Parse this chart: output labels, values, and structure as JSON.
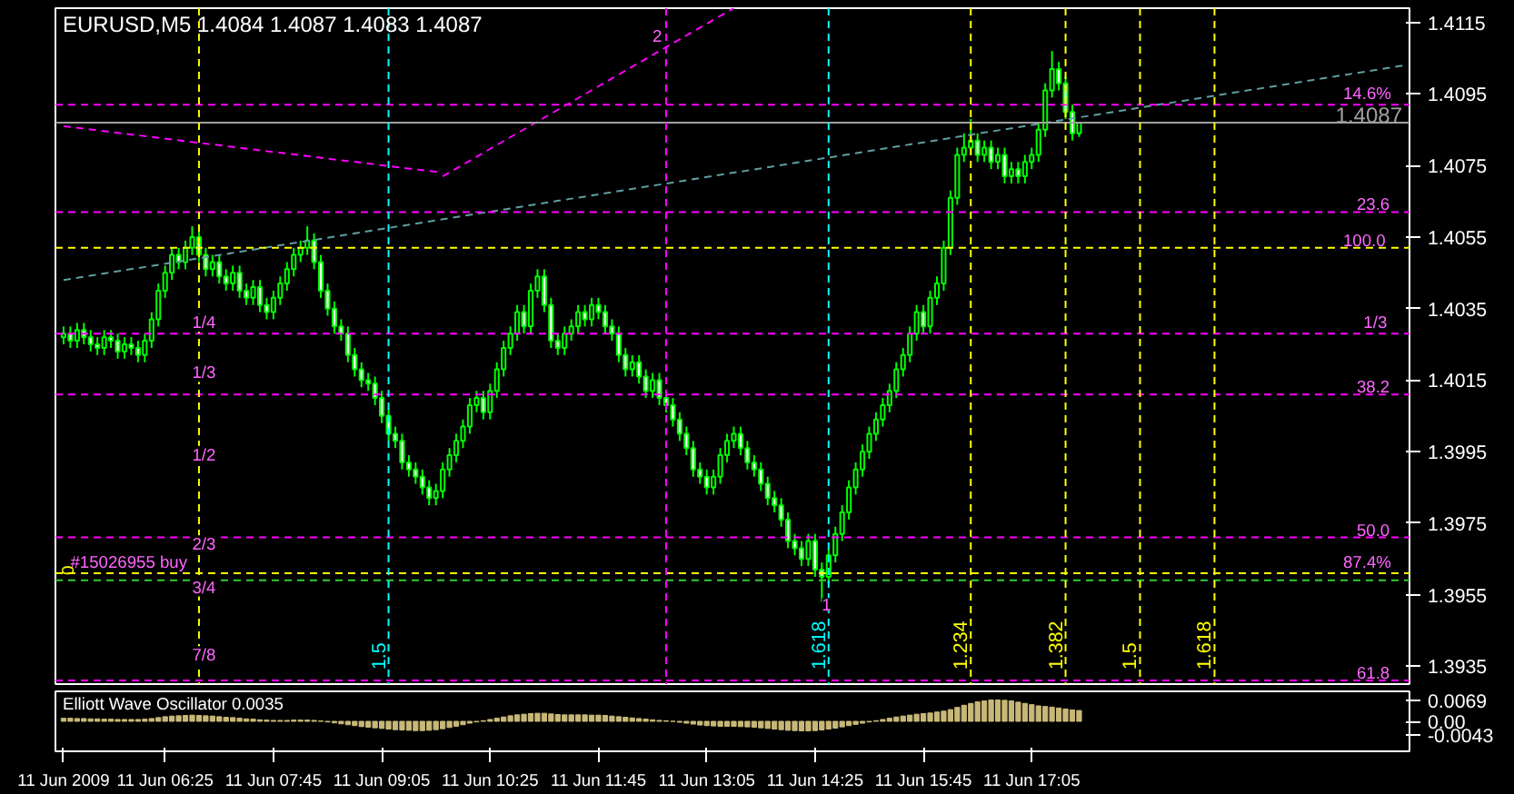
{
  "chart_data": [
    {
      "type": "candlestick",
      "title": "EURUSD,M5  1.4084 1.4087 1.4083 1.4087",
      "color": "#00ff00",
      "x": [
        "2009-06-11T05:10",
        "2009-06-11T05:15",
        "2009-06-11T05:20",
        "2009-06-11T05:25",
        "2009-06-11T05:30",
        "2009-06-11T05:35",
        "2009-06-11T05:40",
        "2009-06-11T05:45",
        "2009-06-11T05:50",
        "2009-06-11T05:55",
        "2009-06-11T06:00",
        "2009-06-11T06:05",
        "2009-06-11T06:10",
        "2009-06-11T06:15",
        "2009-06-11T06:20",
        "2009-06-11T06:25",
        "2009-06-11T06:30",
        "2009-06-11T06:35",
        "2009-06-11T06:40",
        "2009-06-11T06:45",
        "2009-06-11T06:50",
        "2009-06-11T06:55",
        "2009-06-11T07:00",
        "2009-06-11T07:05",
        "2009-06-11T07:10",
        "2009-06-11T07:15",
        "2009-06-11T07:20",
        "2009-06-11T07:25",
        "2009-06-11T07:30",
        "2009-06-11T07:35",
        "2009-06-11T07:40",
        "2009-06-11T07:45",
        "2009-06-11T07:50",
        "2009-06-11T07:55",
        "2009-06-11T08:00",
        "2009-06-11T08:05",
        "2009-06-11T08:10",
        "2009-06-11T08:15",
        "2009-06-11T08:20",
        "2009-06-11T08:25",
        "2009-06-11T08:30",
        "2009-06-11T08:35",
        "2009-06-11T08:40",
        "2009-06-11T08:45",
        "2009-06-11T08:50",
        "2009-06-11T08:55",
        "2009-06-11T09:00",
        "2009-06-11T09:05",
        "2009-06-11T09:10",
        "2009-06-11T09:15",
        "2009-06-11T09:20",
        "2009-06-11T09:25",
        "2009-06-11T09:30",
        "2009-06-11T09:35",
        "2009-06-11T09:40",
        "2009-06-11T09:45",
        "2009-06-11T09:50",
        "2009-06-11T09:55",
        "2009-06-11T10:00",
        "2009-06-11T10:05",
        "2009-06-11T10:10",
        "2009-06-11T10:15",
        "2009-06-11T10:20",
        "2009-06-11T10:25",
        "2009-06-11T10:30",
        "2009-06-11T10:35",
        "2009-06-11T10:40",
        "2009-06-11T10:45",
        "2009-06-11T10:50",
        "2009-06-11T10:55",
        "2009-06-11T11:00",
        "2009-06-11T11:05",
        "2009-06-11T11:10",
        "2009-06-11T11:15",
        "2009-06-11T11:20",
        "2009-06-11T11:25",
        "2009-06-11T11:30",
        "2009-06-11T11:35",
        "2009-06-11T11:40",
        "2009-06-11T11:45",
        "2009-06-11T11:50",
        "2009-06-11T11:55",
        "2009-06-11T12:00",
        "2009-06-11T12:05",
        "2009-06-11T12:10",
        "2009-06-11T12:15",
        "2009-06-11T12:20",
        "2009-06-11T12:25",
        "2009-06-11T12:30",
        "2009-06-11T12:35",
        "2009-06-11T12:40",
        "2009-06-11T12:45",
        "2009-06-11T12:50",
        "2009-06-11T12:55",
        "2009-06-11T13:00",
        "2009-06-11T13:05",
        "2009-06-11T13:10",
        "2009-06-11T13:15",
        "2009-06-11T13:20",
        "2009-06-11T13:25",
        "2009-06-11T13:30",
        "2009-06-11T13:35",
        "2009-06-11T13:40",
        "2009-06-11T13:45",
        "2009-06-11T13:50",
        "2009-06-11T13:55",
        "2009-06-11T14:00",
        "2009-06-11T14:05",
        "2009-06-11T14:10",
        "2009-06-11T14:15",
        "2009-06-11T14:20",
        "2009-06-11T14:25",
        "2009-06-11T14:30",
        "2009-06-11T14:35",
        "2009-06-11T14:40",
        "2009-06-11T14:45",
        "2009-06-11T14:50",
        "2009-06-11T14:55",
        "2009-06-11T15:00",
        "2009-06-11T15:05",
        "2009-06-11T15:10",
        "2009-06-11T15:15",
        "2009-06-11T15:20",
        "2009-06-11T15:25",
        "2009-06-11T15:30",
        "2009-06-11T15:35",
        "2009-06-11T15:40",
        "2009-06-11T15:45",
        "2009-06-11T15:50",
        "2009-06-11T15:55",
        "2009-06-11T16:00",
        "2009-06-11T16:05",
        "2009-06-11T16:10",
        "2009-06-11T16:15",
        "2009-06-11T16:20",
        "2009-06-11T16:25",
        "2009-06-11T16:30",
        "2009-06-11T16:35",
        "2009-06-11T16:40",
        "2009-06-11T16:45",
        "2009-06-11T16:50",
        "2009-06-11T16:55",
        "2009-06-11T17:00",
        "2009-06-11T17:05",
        "2009-06-11T17:10",
        "2009-06-11T17:15",
        "2009-06-11T17:20",
        "2009-06-11T17:25",
        "2009-06-11T17:30",
        "2009-06-11T17:35",
        "2009-06-11T17:40"
      ],
      "ohlc": [
        [
          1.4027,
          1.403,
          1.4025,
          1.4028
        ],
        [
          1.4028,
          1.403,
          1.4024,
          1.4026
        ],
        [
          1.4026,
          1.4031,
          1.4024,
          1.4029
        ],
        [
          1.4029,
          1.4031,
          1.4025,
          1.4027
        ],
        [
          1.4027,
          1.4029,
          1.4023,
          1.4025
        ],
        [
          1.4025,
          1.4027,
          1.4022,
          1.4024
        ],
        [
          1.4024,
          1.4029,
          1.4022,
          1.4027
        ],
        [
          1.4027,
          1.4029,
          1.4024,
          1.4026
        ],
        [
          1.4026,
          1.4028,
          1.4021,
          1.4023
        ],
        [
          1.4023,
          1.4027,
          1.4021,
          1.4025
        ],
        [
          1.4025,
          1.4027,
          1.4022,
          1.4024
        ],
        [
          1.4024,
          1.4026,
          1.402,
          1.4022
        ],
        [
          1.4022,
          1.4028,
          1.402,
          1.4026
        ],
        [
          1.4026,
          1.4034,
          1.4024,
          1.4032
        ],
        [
          1.4032,
          1.4042,
          1.403,
          1.404
        ],
        [
          1.404,
          1.4047,
          1.4038,
          1.4045
        ],
        [
          1.4045,
          1.4052,
          1.4043,
          1.405
        ],
        [
          1.405,
          1.4052,
          1.4046,
          1.4048
        ],
        [
          1.4048,
          1.4054,
          1.4046,
          1.4052
        ],
        [
          1.4052,
          1.4058,
          1.405,
          1.4055
        ],
        [
          1.4055,
          1.4057,
          1.4048,
          1.405
        ],
        [
          1.405,
          1.4052,
          1.4044,
          1.4046
        ],
        [
          1.4046,
          1.405,
          1.4044,
          1.4048
        ],
        [
          1.4048,
          1.405,
          1.4042,
          1.4044
        ],
        [
          1.4044,
          1.4046,
          1.404,
          1.4042
        ],
        [
          1.4042,
          1.4047,
          1.404,
          1.4045
        ],
        [
          1.4045,
          1.4047,
          1.4038,
          1.404
        ],
        [
          1.404,
          1.4042,
          1.4036,
          1.4038
        ],
        [
          1.4038,
          1.4043,
          1.4036,
          1.4041
        ],
        [
          1.4041,
          1.4043,
          1.4034,
          1.4036
        ],
        [
          1.4036,
          1.4038,
          1.4032,
          1.4034
        ],
        [
          1.4034,
          1.404,
          1.4032,
          1.4038
        ],
        [
          1.4038,
          1.4044,
          1.4036,
          1.4042
        ],
        [
          1.4042,
          1.4048,
          1.404,
          1.4046
        ],
        [
          1.4046,
          1.4052,
          1.4044,
          1.405
        ],
        [
          1.405,
          1.4054,
          1.4048,
          1.4052
        ],
        [
          1.4052,
          1.4058,
          1.405,
          1.4054
        ],
        [
          1.4054,
          1.4056,
          1.4046,
          1.4048
        ],
        [
          1.4048,
          1.405,
          1.4038,
          1.404
        ],
        [
          1.404,
          1.4042,
          1.4033,
          1.4035
        ],
        [
          1.4035,
          1.4037,
          1.4028,
          1.403
        ],
        [
          1.403,
          1.4032,
          1.4026,
          1.4028
        ],
        [
          1.4028,
          1.403,
          1.402,
          1.4022
        ],
        [
          1.4022,
          1.4024,
          1.4016,
          1.4018
        ],
        [
          1.4018,
          1.402,
          1.4013,
          1.4015
        ],
        [
          1.4015,
          1.4017,
          1.4012,
          1.4014
        ],
        [
          1.4014,
          1.4016,
          1.4008,
          1.401
        ],
        [
          1.401,
          1.4012,
          1.4003,
          1.4005
        ],
        [
          1.4005,
          1.4007,
          1.3998,
          1.4
        ],
        [
          1.4,
          1.4002,
          1.3996,
          1.3998
        ],
        [
          1.3998,
          1.4,
          1.399,
          1.3992
        ],
        [
          1.3992,
          1.3994,
          1.3988,
          1.399
        ],
        [
          1.399,
          1.3992,
          1.3986,
          1.3988
        ],
        [
          1.3988,
          1.399,
          1.3983,
          1.3985
        ],
        [
          1.3985,
          1.3987,
          1.398,
          1.3982
        ],
        [
          1.3982,
          1.3986,
          1.398,
          1.3984
        ],
        [
          1.3984,
          1.3992,
          1.3982,
          1.399
        ],
        [
          1.399,
          1.3996,
          1.3988,
          1.3994
        ],
        [
          1.3994,
          1.4,
          1.3992,
          1.3998
        ],
        [
          1.3998,
          1.4004,
          1.3996,
          1.4002
        ],
        [
          1.4002,
          1.401,
          1.4,
          1.4008
        ],
        [
          1.4008,
          1.4012,
          1.4006,
          1.401
        ],
        [
          1.401,
          1.4012,
          1.4004,
          1.4006
        ],
        [
          1.4006,
          1.4014,
          1.4004,
          1.4012
        ],
        [
          1.4012,
          1.402,
          1.401,
          1.4018
        ],
        [
          1.4018,
          1.4026,
          1.4016,
          1.4024
        ],
        [
          1.4024,
          1.403,
          1.4022,
          1.4028
        ],
        [
          1.4028,
          1.4036,
          1.4026,
          1.4034
        ],
        [
          1.4034,
          1.4036,
          1.4028,
          1.403
        ],
        [
          1.403,
          1.4042,
          1.4028,
          1.404
        ],
        [
          1.404,
          1.4046,
          1.4038,
          1.4044
        ],
        [
          1.4044,
          1.4046,
          1.4034,
          1.4036
        ],
        [
          1.4036,
          1.4038,
          1.4024,
          1.4026
        ],
        [
          1.4026,
          1.4028,
          1.4022,
          1.4024
        ],
        [
          1.4024,
          1.403,
          1.4022,
          1.4028
        ],
        [
          1.4028,
          1.4032,
          1.4026,
          1.403
        ],
        [
          1.403,
          1.4036,
          1.4028,
          1.4034
        ],
        [
          1.4034,
          1.4036,
          1.403,
          1.4032
        ],
        [
          1.4032,
          1.4038,
          1.403,
          1.4036
        ],
        [
          1.4036,
          1.4038,
          1.4032,
          1.4034
        ],
        [
          1.4034,
          1.4036,
          1.4028,
          1.403
        ],
        [
          1.403,
          1.4032,
          1.4026,
          1.4028
        ],
        [
          1.4028,
          1.403,
          1.402,
          1.4022
        ],
        [
          1.4022,
          1.4024,
          1.4016,
          1.4018
        ],
        [
          1.4018,
          1.4022,
          1.4016,
          1.402
        ],
        [
          1.402,
          1.4022,
          1.4014,
          1.4016
        ],
        [
          1.4016,
          1.4018,
          1.401,
          1.4012
        ],
        [
          1.4012,
          1.4017,
          1.401,
          1.4015
        ],
        [
          1.4015,
          1.4017,
          1.4008,
          1.401
        ],
        [
          1.401,
          1.4012,
          1.4006,
          1.4008
        ],
        [
          1.4008,
          1.401,
          1.4002,
          1.4004
        ],
        [
          1.4004,
          1.4006,
          1.3998,
          1.4
        ],
        [
          1.4,
          1.4002,
          1.3994,
          1.3996
        ],
        [
          1.3996,
          1.3998,
          1.3988,
          1.399
        ],
        [
          1.399,
          1.3992,
          1.3986,
          1.3988
        ],
        [
          1.3988,
          1.399,
          1.3983,
          1.3985
        ],
        [
          1.3985,
          1.399,
          1.3983,
          1.3988
        ],
        [
          1.3988,
          1.3996,
          1.3986,
          1.3994
        ],
        [
          1.3994,
          1.4,
          1.3992,
          1.3998
        ],
        [
          1.3998,
          1.4002,
          1.3996,
          1.4
        ],
        [
          1.4,
          1.4002,
          1.3994,
          1.3996
        ],
        [
          1.3996,
          1.3998,
          1.399,
          1.3992
        ],
        [
          1.3992,
          1.3994,
          1.3988,
          1.399
        ],
        [
          1.399,
          1.3992,
          1.3984,
          1.3986
        ],
        [
          1.3986,
          1.3988,
          1.398,
          1.3982
        ],
        [
          1.3982,
          1.3984,
          1.3978,
          1.398
        ],
        [
          1.398,
          1.3982,
          1.3974,
          1.3976
        ],
        [
          1.3976,
          1.3978,
          1.3968,
          1.397
        ],
        [
          1.397,
          1.3972,
          1.3966,
          1.3968
        ],
        [
          1.3968,
          1.397,
          1.3963,
          1.3965
        ],
        [
          1.3965,
          1.3972,
          1.3963,
          1.397
        ],
        [
          1.397,
          1.3972,
          1.396,
          1.3962
        ],
        [
          1.3962,
          1.3964,
          1.3953,
          1.396
        ],
        [
          1.396,
          1.3968,
          1.3958,
          1.3966
        ],
        [
          1.3966,
          1.3974,
          1.3964,
          1.3972
        ],
        [
          1.3972,
          1.398,
          1.397,
          1.3978
        ],
        [
          1.3978,
          1.3987,
          1.3976,
          1.3985
        ],
        [
          1.3985,
          1.3992,
          1.3983,
          1.399
        ],
        [
          1.399,
          1.3997,
          1.3988,
          1.3995
        ],
        [
          1.3995,
          1.4002,
          1.3993,
          1.4
        ],
        [
          1.4,
          1.4006,
          1.3998,
          1.4004
        ],
        [
          1.4004,
          1.401,
          1.4002,
          1.4008
        ],
        [
          1.4008,
          1.4014,
          1.4006,
          1.4012
        ],
        [
          1.4012,
          1.402,
          1.401,
          1.4018
        ],
        [
          1.4018,
          1.4024,
          1.4016,
          1.4022
        ],
        [
          1.4022,
          1.403,
          1.402,
          1.4028
        ],
        [
          1.4028,
          1.4036,
          1.4026,
          1.4034
        ],
        [
          1.4034,
          1.4036,
          1.4028,
          1.403
        ],
        [
          1.403,
          1.404,
          1.4028,
          1.4038
        ],
        [
          1.4038,
          1.4044,
          1.4036,
          1.4042
        ],
        [
          1.4042,
          1.4054,
          1.404,
          1.4052
        ],
        [
          1.4052,
          1.4068,
          1.405,
          1.4066
        ],
        [
          1.4066,
          1.408,
          1.4064,
          1.4078
        ],
        [
          1.4078,
          1.4084,
          1.4076,
          1.408
        ],
        [
          1.408,
          1.4088,
          1.4078,
          1.4082
        ],
        [
          1.4082,
          1.4084,
          1.4076,
          1.4078
        ],
        [
          1.4078,
          1.4082,
          1.4076,
          1.408
        ],
        [
          1.408,
          1.4082,
          1.4074,
          1.4076
        ],
        [
          1.4076,
          1.408,
          1.4074,
          1.4078
        ],
        [
          1.4078,
          1.408,
          1.407,
          1.4072
        ],
        [
          1.4072,
          1.4076,
          1.407,
          1.4074
        ],
        [
          1.4074,
          1.4076,
          1.407,
          1.4072
        ],
        [
          1.4072,
          1.4078,
          1.407,
          1.4076
        ],
        [
          1.4076,
          1.408,
          1.4074,
          1.4078
        ],
        [
          1.4078,
          1.4087,
          1.4076,
          1.4085
        ],
        [
          1.4085,
          1.4098,
          1.4083,
          1.4096
        ],
        [
          1.4096,
          1.4107,
          1.4094,
          1.4102
        ],
        [
          1.4102,
          1.4104,
          1.4096,
          1.4098
        ],
        [
          1.4098,
          1.41,
          1.4088,
          1.409
        ],
        [
          1.409,
          1.4092,
          1.4082,
          1.4084
        ],
        [
          1.4084,
          1.4087,
          1.4083,
          1.4087
        ]
      ],
      "series": [
        {
          "type": "line",
          "color": "#ff00ff",
          "x": [
            "2009-06-11T05:10",
            "2009-06-11T09:50"
          ],
          "values": [
            1.4086,
            1.4073
          ]
        },
        {
          "type": "line",
          "color": "#ff00ff",
          "x": [
            "2009-06-11T09:50",
            "2009-06-11T13:25"
          ],
          "values": [
            1.4072,
            1.4119
          ]
        },
        {
          "type": "line",
          "color": "#5f9ea0",
          "x": [
            "2009-06-11T05:10",
            "2009-06-11T21:40"
          ],
          "values": [
            1.4043,
            1.4103
          ]
        }
      ],
      "line_style": "dashed",
      "ref_lines": [
        {
          "axis": "y",
          "value": 1.4092,
          "color": "#ff00ff",
          "line_style": "dashed"
        },
        {
          "axis": "y",
          "value": 1.4087,
          "label": "1.4087",
          "color": "#a0a0a0",
          "line_style": "solid"
        },
        {
          "axis": "y",
          "value": 1.4062,
          "color": "#ff00ff",
          "line_style": "dashed"
        },
        {
          "axis": "y",
          "value": 1.4052,
          "color": "#ffff00",
          "line_style": "dashed"
        },
        {
          "axis": "y",
          "value": 1.4028,
          "color": "#ff00ff",
          "line_style": "dashed"
        },
        {
          "axis": "y",
          "value": 1.4011,
          "color": "#ff00ff",
          "line_style": "dashed"
        },
        {
          "axis": "y",
          "value": 1.3971,
          "color": "#ff00ff",
          "line_style": "dashed"
        },
        {
          "axis": "y",
          "value": 1.3961,
          "color": "#ffff00",
          "line_style": "dashed"
        },
        {
          "axis": "y",
          "value": 1.3959,
          "color": "#32cd32",
          "line_style": "dashed"
        },
        {
          "axis": "y",
          "value": 1.3931,
          "color": "#ff00ff",
          "line_style": "dashed"
        },
        {
          "axis": "x",
          "value": "2009-06-11T06:50",
          "color": "#ffff00",
          "line_style": "dashed"
        },
        {
          "axis": "x",
          "value": "2009-06-11T09:10",
          "label": "1.5",
          "color": "#00ffff",
          "line_style": "dashed"
        },
        {
          "axis": "x",
          "value": "2009-06-11T12:35",
          "color": "#ff00ff",
          "line_style": "dashed"
        },
        {
          "axis": "x",
          "value": "2009-06-11T14:35",
          "label": "1.618",
          "color": "#00ffff",
          "line_style": "dashed"
        },
        {
          "axis": "x",
          "value": "2009-06-11T16:20",
          "label": "1.234",
          "color": "#ffff00",
          "line_style": "dashed"
        },
        {
          "axis": "x",
          "value": "2009-06-11T17:30",
          "label": "1.382",
          "color": "#ffff00",
          "line_style": "dashed"
        },
        {
          "axis": "x",
          "value": "2009-06-11T18:25",
          "label": "1.5",
          "color": "#ffff00",
          "line_style": "dashed"
        },
        {
          "axis": "x",
          "value": "2009-06-11T19:20",
          "label": "1.618",
          "color": "#ffff00",
          "line_style": "dashed"
        }
      ],
      "annotations": [
        {
          "text": "#15026955 buy",
          "x": "2009-06-11T05:15",
          "y": 1.3961
        },
        {
          "text": "1/4",
          "x": "2009-06-11T06:45",
          "y": 1.4028
        },
        {
          "text": "1/3",
          "x": "2009-06-11T06:45",
          "y": 1.4014
        },
        {
          "text": "1/2",
          "x": "2009-06-11T06:45",
          "y": 1.3991
        },
        {
          "text": "2/3",
          "x": "2009-06-11T06:45",
          "y": 1.3966
        },
        {
          "text": "3/4",
          "x": "2009-06-11T06:45",
          "y": 1.3954
        },
        {
          "text": "7/8",
          "x": "2009-06-11T06:45",
          "y": 1.3935
        },
        "0",
        {
          "text": "14.6%",
          "x": "2009-06-11T20:55",
          "y": 1.4092
        },
        {
          "text": "23.6",
          "x": "2009-06-11T21:05",
          "y": 1.4062
        },
        {
          "text": "100.0",
          "x": "2009-06-11T20:55",
          "y": 1.4052
        },
        {
          "text": "1/3",
          "x": "2009-06-11T21:10",
          "y": 1.4028
        },
        {
          "text": "38.2",
          "x": "2009-06-11T21:05",
          "y": 1.4011
        },
        {
          "text": "50.0",
          "x": "2009-06-11T21:05",
          "y": 1.3971
        },
        {
          "text": "87.4%",
          "x": "2009-06-11T20:55",
          "y": 1.3961
        },
        {
          "text": "61.8",
          "x": "2009-06-11T21:05",
          "y": 1.3931
        },
        {
          "text": "1",
          "x": "2009-06-11T14:30",
          "y": 1.395
        },
        {
          "text": "2",
          "x": "2009-06-11T12:25",
          "y": 1.4109
        }
      ],
      "xlim": [
        "2009-06-11T05:04",
        "2009-06-11T21:44"
      ],
      "ylim": [
        1.393,
        1.4119
      ],
      "yticks": [
        1.3935,
        1.3955,
        1.3975,
        1.3995,
        1.4015,
        1.4035,
        1.4055,
        1.4075,
        1.4095,
        1.4115
      ],
      "tick_labels": "y"
    },
    {
      "type": "bar",
      "title": "Elliott Wave Oscillator 0.0035",
      "color": "#c8b878",
      "x": [
        "2009-06-11T05:10",
        "2009-06-11T05:15",
        "2009-06-11T05:20",
        "2009-06-11T05:25",
        "2009-06-11T05:30",
        "2009-06-11T05:35",
        "2009-06-11T05:40",
        "2009-06-11T05:45",
        "2009-06-11T05:50",
        "2009-06-11T05:55",
        "2009-06-11T06:00",
        "2009-06-11T06:05",
        "2009-06-11T06:10",
        "2009-06-11T06:15",
        "2009-06-11T06:20",
        "2009-06-11T06:25",
        "2009-06-11T06:30",
        "2009-06-11T06:35",
        "2009-06-11T06:40",
        "2009-06-11T06:45",
        "2009-06-11T06:50",
        "2009-06-11T06:55",
        "2009-06-11T07:00",
        "2009-06-11T07:05",
        "2009-06-11T07:10",
        "2009-06-11T07:15",
        "2009-06-11T07:20",
        "2009-06-11T07:25",
        "2009-06-11T07:30",
        "2009-06-11T07:35",
        "2009-06-11T07:40",
        "2009-06-11T07:45",
        "2009-06-11T07:50",
        "2009-06-11T07:55",
        "2009-06-11T08:00",
        "2009-06-11T08:05",
        "2009-06-11T08:10",
        "2009-06-11T08:15",
        "2009-06-11T08:20",
        "2009-06-11T08:25",
        "2009-06-11T08:30",
        "2009-06-11T08:35",
        "2009-06-11T08:40",
        "2009-06-11T08:45",
        "2009-06-11T08:50",
        "2009-06-11T08:55",
        "2009-06-11T09:00",
        "2009-06-11T09:05",
        "2009-06-11T09:10",
        "2009-06-11T09:15",
        "2009-06-11T09:20",
        "2009-06-11T09:25",
        "2009-06-11T09:30",
        "2009-06-11T09:35",
        "2009-06-11T09:40",
        "2009-06-11T09:45",
        "2009-06-11T09:50",
        "2009-06-11T09:55",
        "2009-06-11T10:00",
        "2009-06-11T10:05",
        "2009-06-11T10:10",
        "2009-06-11T10:15",
        "2009-06-11T10:20",
        "2009-06-11T10:25",
        "2009-06-11T10:30",
        "2009-06-11T10:35",
        "2009-06-11T10:40",
        "2009-06-11T10:45",
        "2009-06-11T10:50",
        "2009-06-11T10:55",
        "2009-06-11T11:00",
        "2009-06-11T11:05",
        "2009-06-11T11:10",
        "2009-06-11T11:15",
        "2009-06-11T11:20",
        "2009-06-11T11:25",
        "2009-06-11T11:30",
        "2009-06-11T11:35",
        "2009-06-11T11:40",
        "2009-06-11T11:45",
        "2009-06-11T11:50",
        "2009-06-11T11:55",
        "2009-06-11T12:00",
        "2009-06-11T12:05",
        "2009-06-11T12:10",
        "2009-06-11T12:15",
        "2009-06-11T12:20",
        "2009-06-11T12:25",
        "2009-06-11T12:30",
        "2009-06-11T12:35",
        "2009-06-11T12:40",
        "2009-06-11T12:45",
        "2009-06-11T12:50",
        "2009-06-11T12:55",
        "2009-06-11T13:00",
        "2009-06-11T13:05",
        "2009-06-11T13:10",
        "2009-06-11T13:15",
        "2009-06-11T13:20",
        "2009-06-11T13:25",
        "2009-06-11T13:30",
        "2009-06-11T13:35",
        "2009-06-11T13:40",
        "2009-06-11T13:45",
        "2009-06-11T13:50",
        "2009-06-11T13:55",
        "2009-06-11T14:00",
        "2009-06-11T14:05",
        "2009-06-11T14:10",
        "2009-06-11T14:15",
        "2009-06-11T14:20",
        "2009-06-11T14:25",
        "2009-06-11T14:30",
        "2009-06-11T14:35",
        "2009-06-11T14:40",
        "2009-06-11T14:45",
        "2009-06-11T14:50",
        "2009-06-11T14:55",
        "2009-06-11T15:00",
        "2009-06-11T15:05",
        "2009-06-11T15:10",
        "2009-06-11T15:15",
        "2009-06-11T15:20",
        "2009-06-11T15:25",
        "2009-06-11T15:30",
        "2009-06-11T15:35",
        "2009-06-11T15:40",
        "2009-06-11T15:45",
        "2009-06-11T15:50",
        "2009-06-11T15:55",
        "2009-06-11T16:00",
        "2009-06-11T16:05",
        "2009-06-11T16:10",
        "2009-06-11T16:15",
        "2009-06-11T16:20",
        "2009-06-11T16:25",
        "2009-06-11T16:30",
        "2009-06-11T16:35",
        "2009-06-11T16:40",
        "2009-06-11T16:45",
        "2009-06-11T16:50",
        "2009-06-11T16:55",
        "2009-06-11T17:00",
        "2009-06-11T17:05",
        "2009-06-11T17:10",
        "2009-06-11T17:15",
        "2009-06-11T17:20",
        "2009-06-11T17:25",
        "2009-06-11T17:30",
        "2009-06-11T17:35",
        "2009-06-11T17:40"
      ],
      "values": [
        0.001,
        0.001,
        0.0009,
        0.0009,
        0.0008,
        0.0008,
        0.0007,
        0.0007,
        0.0006,
        0.0006,
        0.0006,
        0.0006,
        0.0007,
        0.0009,
        0.0012,
        0.0015,
        0.0017,
        0.0018,
        0.0019,
        0.002,
        0.0019,
        0.0018,
        0.0017,
        0.0015,
        0.0013,
        0.0012,
        0.001,
        0.0008,
        0.0007,
        0.0005,
        0.0004,
        0.0003,
        0.0003,
        0.0003,
        0.0004,
        0.0004,
        0.0004,
        0.0003,
        0.0001,
        -0.0002,
        -0.0005,
        -0.0008,
        -0.0011,
        -0.0014,
        -0.0017,
        -0.0019,
        -0.0021,
        -0.0023,
        -0.0025,
        -0.0027,
        -0.0028,
        -0.0029,
        -0.003,
        -0.003,
        -0.0029,
        -0.0027,
        -0.0024,
        -0.002,
        -0.0016,
        -0.0011,
        -0.0006,
        -0.0002,
        0.0002,
        0.0006,
        0.001,
        0.0014,
        0.0018,
        0.0021,
        0.0023,
        0.0025,
        0.0026,
        0.0026,
        0.0024,
        0.0022,
        0.0021,
        0.0021,
        0.0021,
        0.0021,
        0.002,
        0.002,
        0.0019,
        0.0017,
        0.0015,
        0.0013,
        0.0011,
        0.0009,
        0.0007,
        0.0005,
        0.0003,
        0.0002,
        0.0,
        -0.0003,
        -0.0006,
        -0.0009,
        -0.0012,
        -0.0014,
        -0.0015,
        -0.0016,
        -0.0016,
        -0.0016,
        -0.0017,
        -0.0018,
        -0.0019,
        -0.0021,
        -0.0023,
        -0.0025,
        -0.0027,
        -0.0029,
        -0.003,
        -0.0031,
        -0.0031,
        -0.003,
        -0.0028,
        -0.0025,
        -0.0022,
        -0.0018,
        -0.0014,
        -0.001,
        -0.0006,
        -0.0002,
        0.0002,
        0.0006,
        0.001,
        0.0014,
        0.0017,
        0.002,
        0.0023,
        0.0025,
        0.0027,
        0.003,
        0.0033,
        0.0038,
        0.0045,
        0.0052,
        0.0058,
        0.0063,
        0.0066,
        0.0069,
        0.0069,
        0.0068,
        0.0066,
        0.0062,
        0.0058,
        0.0054,
        0.005,
        0.0048,
        0.0046,
        0.0043,
        0.004,
        0.0037,
        0.0035
      ],
      "xlim": [
        "2009-06-11T05:04",
        "2009-06-11T21:44"
      ],
      "ylim": [
        -0.0097,
        0.0097
      ],
      "yticks": [
        0.0069,
        {
          "value": 0,
          "label": "0.00"
        },
        -0.0043
      ],
      "xticks": [
        {
          "value": "2009-06-11T05:10",
          "label": "11 Jun 2009"
        },
        {
          "value": "2009-06-11T06:25",
          "label": "11 Jun 06:25"
        },
        {
          "value": "2009-06-11T07:45",
          "label": "11 Jun 07:45"
        },
        {
          "value": "2009-06-11T09:05",
          "label": "11 Jun 09:05"
        },
        {
          "value": "2009-06-11T10:25",
          "label": "11 Jun 10:25"
        },
        {
          "value": "2009-06-11T11:45",
          "label": "11 Jun 11:45"
        },
        {
          "value": "2009-06-11T13:05",
          "label": "11 Jun 13:05"
        },
        {
          "value": "2009-06-11T14:25",
          "label": "11 Jun 14:25"
        },
        {
          "value": "2009-06-11T15:45",
          "label": "11 Jun 15:45"
        },
        {
          "value": "2009-06-11T17:05",
          "label": "11 Jun 17:05"
        }
      ]
    }
  ]
}
